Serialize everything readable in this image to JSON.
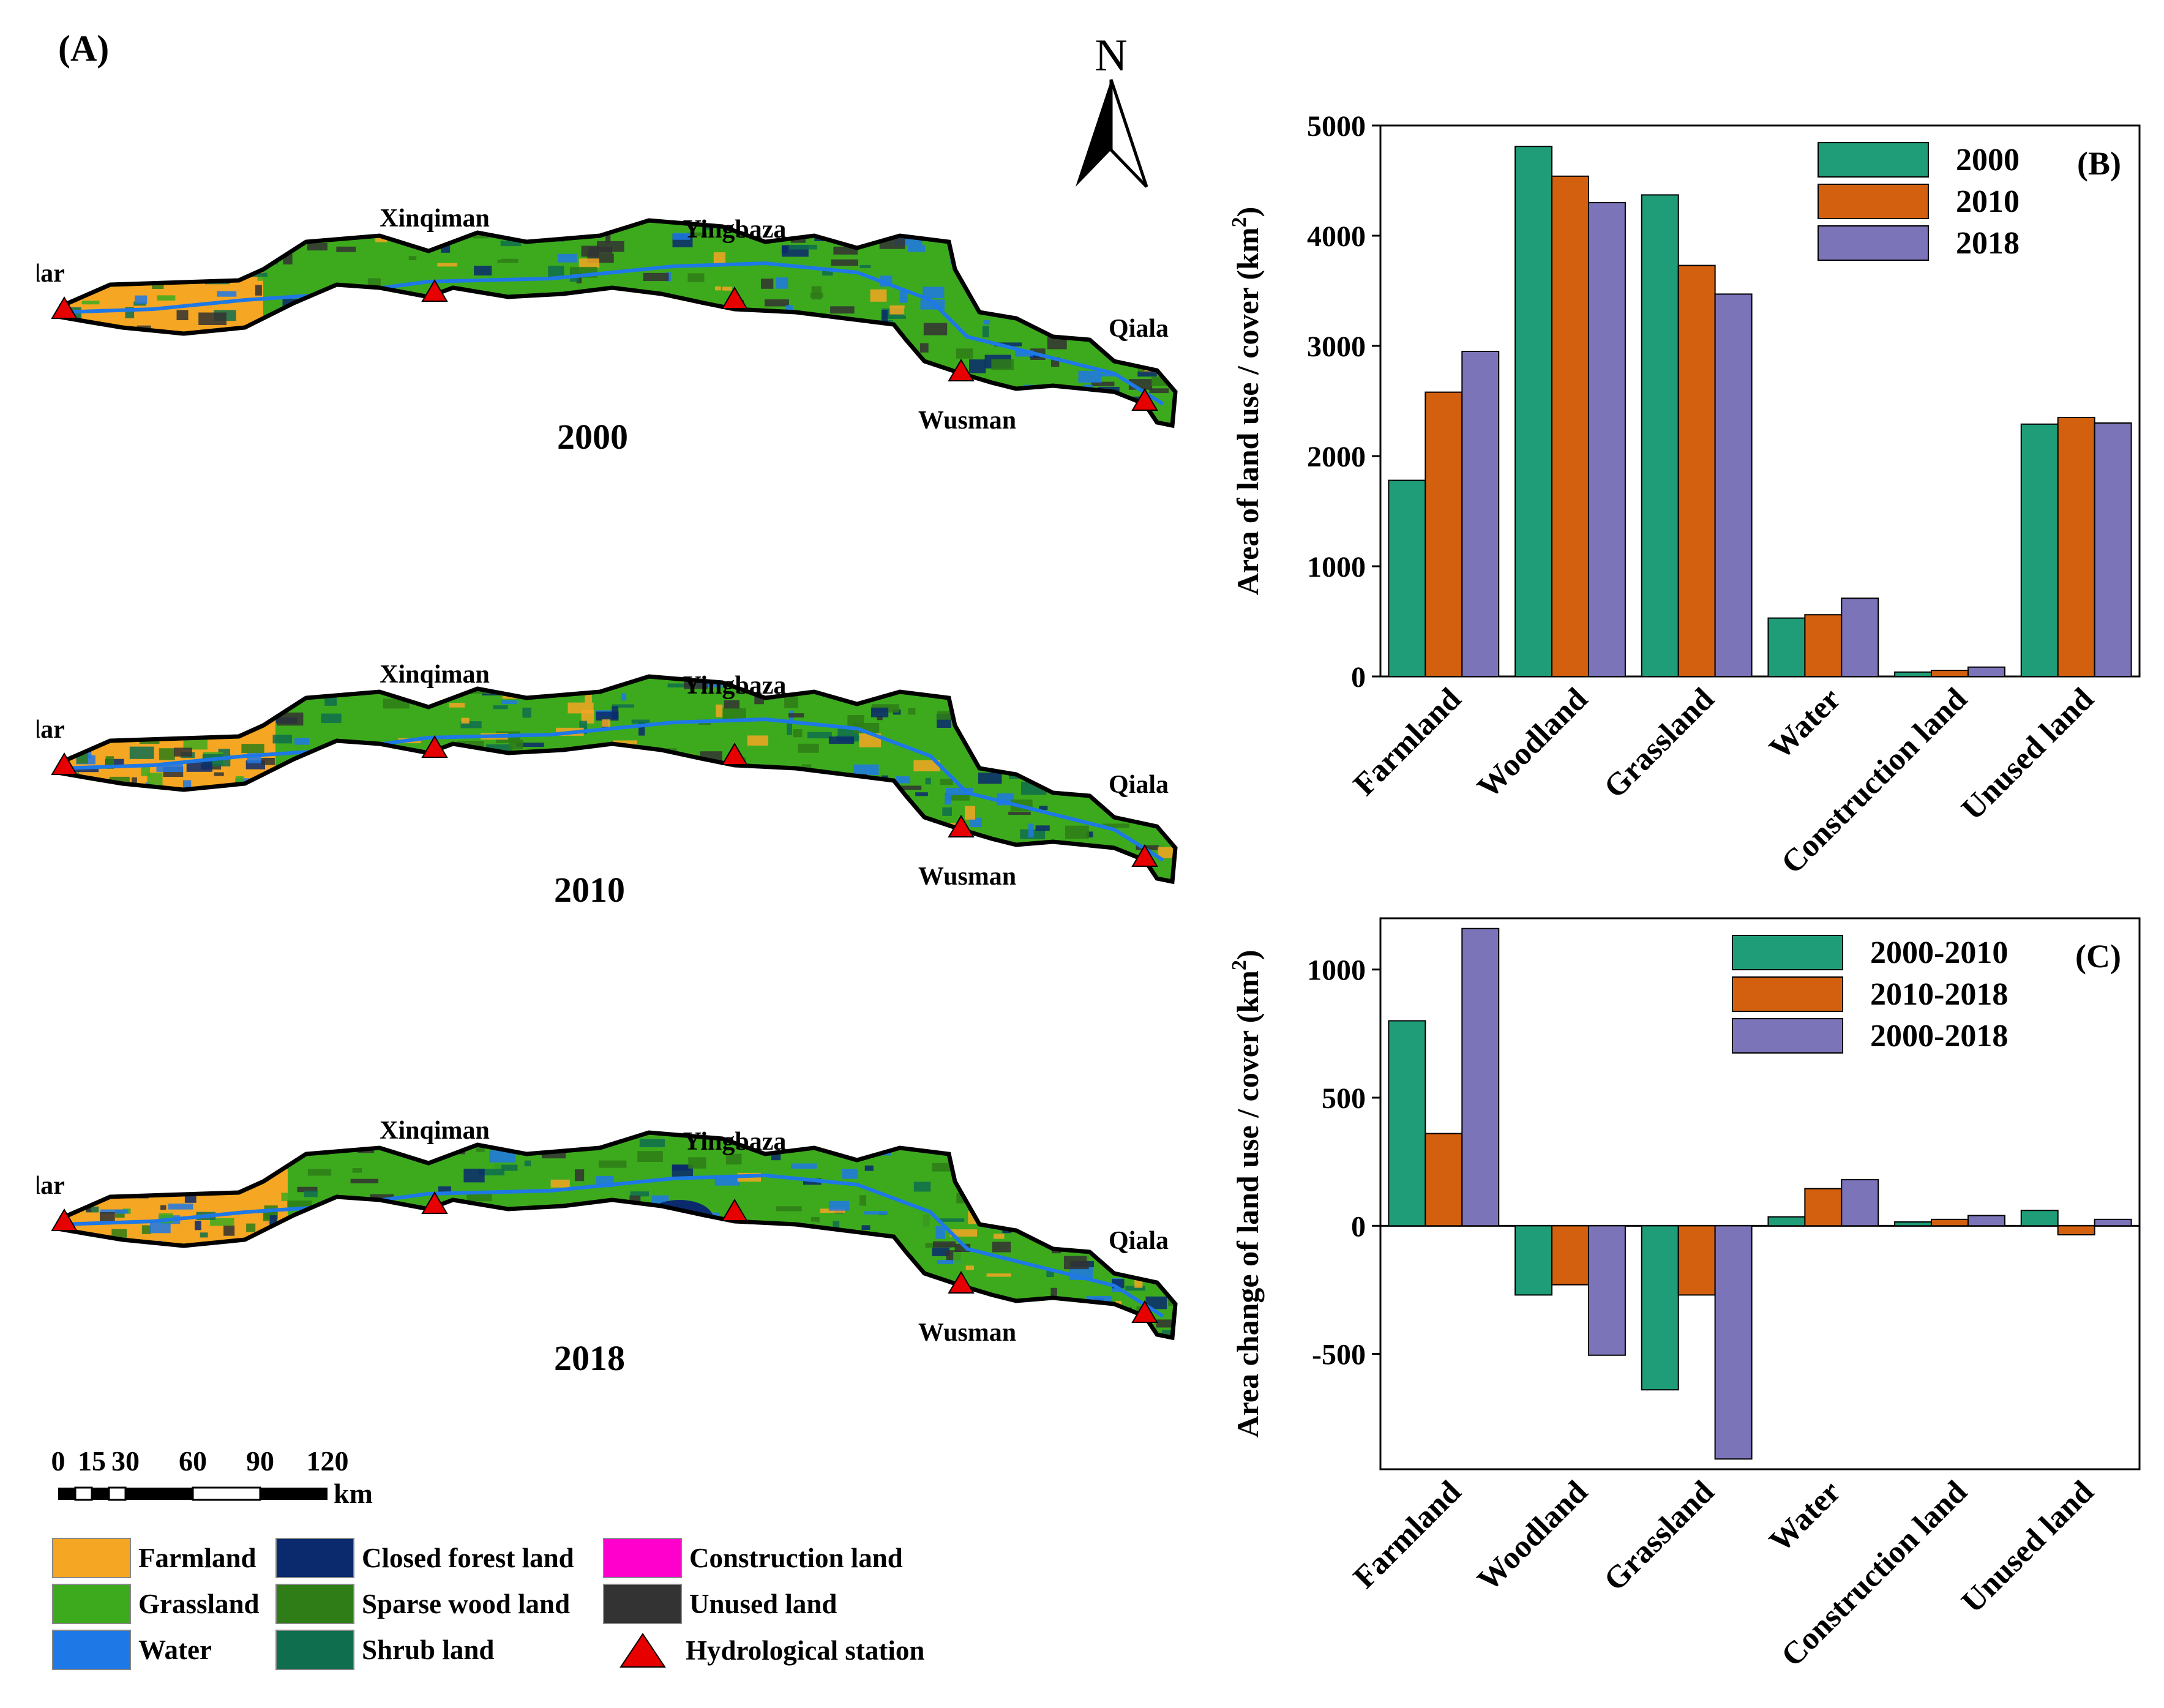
{
  "panelA": {
    "label": "(A)",
    "maps": [
      {
        "year": "2000",
        "stations": {
          "s1": "Alar",
          "s2": "Xinqiman",
          "s3": "Yingbaza",
          "s4": "Wusman",
          "s5": "Qiala"
        }
      },
      {
        "year": "2010",
        "stations": {
          "s1": "Alar",
          "s2": "Xinqiman",
          "s3": "Yingbaza",
          "s4": "Wusman",
          "s5": "Qiala"
        }
      },
      {
        "year": "2018",
        "stations": {
          "s1": "Alar",
          "s2": "Xinqiman",
          "s3": "Yingbaza",
          "s4": "Wusman",
          "s5": "Qiala"
        }
      }
    ],
    "north": "N",
    "scalebar": {
      "ticks": [
        "0",
        "15",
        "30",
        "60",
        "90",
        "120"
      ],
      "unit": "km"
    },
    "legend": [
      {
        "label": "Farmland",
        "color": "#F5A623"
      },
      {
        "label": "Closed forest land",
        "color": "#0B2A6E"
      },
      {
        "label": "Construction land",
        "color": "#FF00CC"
      },
      {
        "label": "Grassland",
        "color": "#3DAA1E"
      },
      {
        "label": "Sparse wood land",
        "color": "#2E7D16"
      },
      {
        "label": "Unused land",
        "color": "#333333"
      },
      {
        "label": "Water",
        "color": "#1E78E6"
      },
      {
        "label": "Shrub land",
        "color": "#0F6E4E"
      },
      {
        "label": "Hydrological station",
        "color": "#E60000"
      }
    ]
  },
  "chart_data": [
    {
      "type": "bar",
      "panel": "(B)",
      "categories": [
        "Farmland",
        "Woodland",
        "Grassland",
        "Water",
        "Construction land",
        "Unused land"
      ],
      "series": [
        {
          "name": "2000",
          "color": "#1F9C78",
          "values": [
            1780,
            4810,
            4370,
            530,
            40,
            2290
          ]
        },
        {
          "name": "2010",
          "color": "#D2600F",
          "values": [
            2580,
            4540,
            3730,
            560,
            55,
            2350
          ]
        },
        {
          "name": "2018",
          "color": "#7B74B8",
          "values": [
            2950,
            4300,
            3470,
            710,
            85,
            2300
          ]
        }
      ],
      "ylabel": "Area of land use / cover (km²)",
      "ylabel_main": "Area of land use / cover (km",
      "ylabel_sup": "2",
      "ylabel_end": ")",
      "ylim": [
        0,
        5000
      ],
      "yticks": [
        0,
        1000,
        2000,
        3000,
        4000,
        5000
      ],
      "legend_position": "top-right"
    },
    {
      "type": "bar",
      "panel": "(C)",
      "categories": [
        "Farmland",
        "Woodland",
        "Grassland",
        "Water",
        "Construction land",
        "Unused land"
      ],
      "series": [
        {
          "name": "2000-2010",
          "color": "#1F9C78",
          "values": [
            800,
            -270,
            -640,
            35,
            15,
            60
          ]
        },
        {
          "name": "2010-2018",
          "color": "#D2600F",
          "values": [
            360,
            -230,
            -270,
            145,
            25,
            -35
          ]
        },
        {
          "name": "2000-2018",
          "color": "#7B74B8",
          "values": [
            1160,
            -505,
            -910,
            180,
            40,
            25
          ]
        }
      ],
      "ylabel": "Area change of land use / cover (km²)",
      "ylabel_main": "Area change of land use / cover (km",
      "ylabel_sup": "2",
      "ylabel_end": ")",
      "ylim": [
        -950,
        1200
      ],
      "yticks": [
        -500,
        0,
        500,
        1000
      ],
      "legend_position": "top-right"
    }
  ]
}
